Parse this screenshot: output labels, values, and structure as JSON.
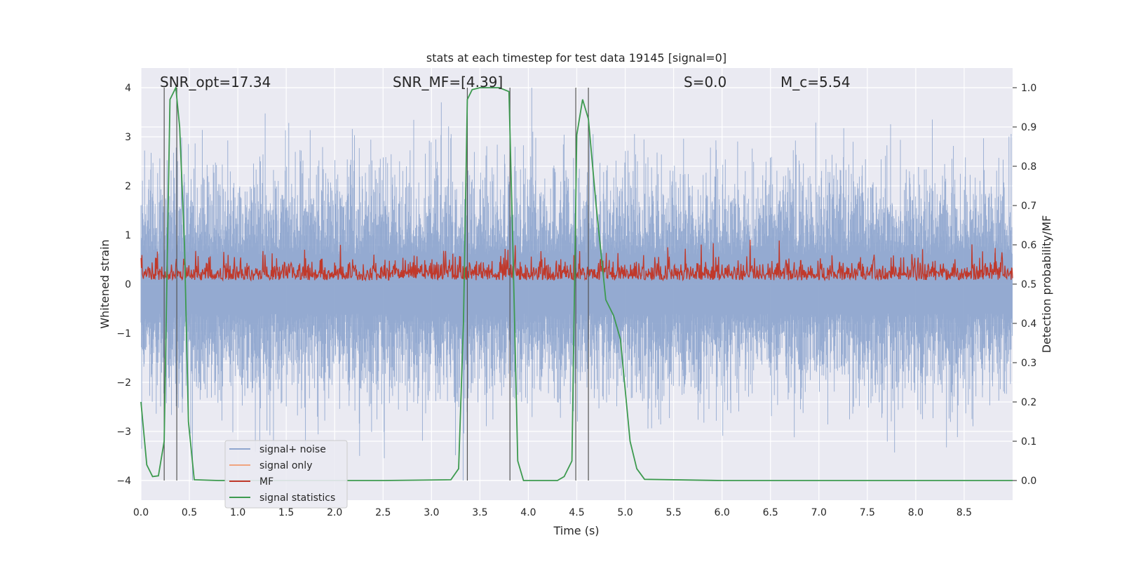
{
  "chart_data": {
    "type": "line",
    "title": "stats at each timestep for test data 19145 [signal=0]",
    "xlabel": "Time (s)",
    "ylabel_left": "Whitened strain",
    "ylabel_right": "Detection probability/MF",
    "xlim": [
      0,
      9.0
    ],
    "ylim_left": [
      -4.4,
      4.4
    ],
    "ylim_right": [
      -0.05,
      1.05
    ],
    "x_ticks": [
      0.0,
      0.5,
      1.0,
      1.5,
      2.0,
      2.5,
      3.0,
      3.5,
      4.0,
      4.5,
      5.0,
      5.5,
      6.0,
      6.5,
      7.0,
      7.5,
      8.0,
      8.5
    ],
    "x_tick_labels": [
      "0.0",
      "0.5",
      "1.0",
      "1.5",
      "2.0",
      "2.5",
      "3.0",
      "3.5",
      "4.0",
      "4.5",
      "5.0",
      "5.5",
      "6.0",
      "6.5",
      "7.0",
      "7.5",
      "8.0",
      "8.5"
    ],
    "y_ticks_left": [
      -4,
      -3,
      -2,
      -1,
      0,
      1,
      2,
      3,
      4
    ],
    "y_tick_labels_left": [
      "−4",
      "−3",
      "−2",
      "−1",
      "0",
      "1",
      "2",
      "3",
      "4"
    ],
    "y_ticks_right": [
      0.0,
      0.1,
      0.2,
      0.3,
      0.4,
      0.5,
      0.6,
      0.7,
      0.8,
      0.9,
      1.0
    ],
    "y_tick_labels_right": [
      "0.0",
      "0.1",
      "0.2",
      "0.3",
      "0.4",
      "0.5",
      "0.6",
      "0.7",
      "0.8",
      "0.9",
      "1.0"
    ],
    "grid": true,
    "annotations": [
      {
        "text": "SNR_opt=17.34",
        "x": 0.2,
        "y": 4.1
      },
      {
        "text": "SNR_MF=[4.39]",
        "x": 2.6,
        "y": 4.1
      },
      {
        "text": "S=0.0",
        "x": 5.6,
        "y": 4.1
      },
      {
        "text": "M_c=5.54",
        "x": 6.6,
        "y": 4.1
      }
    ],
    "vertical_lines_x": [
      0.24,
      0.37,
      3.37,
      3.81,
      4.49,
      4.62
    ],
    "series": [
      {
        "name": "signal+ noise",
        "color": "#8fa6cf",
        "axis": "left",
        "description": "whitened strain noise, approx within ±2.5 with peaks to ±4"
      },
      {
        "name": "signal only",
        "color": "#f0a47f",
        "axis": "left",
        "values": []
      },
      {
        "name": "MF",
        "color": "#c0392b",
        "axis": "right",
        "description": "matched-filter output ~0.50–0.62"
      },
      {
        "name": "signal statistics",
        "color": "#3d9a4f",
        "axis": "right",
        "x": [
          0.0,
          0.06,
          0.12,
          0.18,
          0.24,
          0.3,
          0.36,
          0.4,
          0.45,
          0.49,
          0.55,
          0.8,
          1.5,
          2.5,
          3.2,
          3.28,
          3.33,
          3.37,
          3.42,
          3.5,
          3.6,
          3.7,
          3.8,
          3.84,
          3.89,
          3.95,
          4.1,
          4.3,
          4.37,
          4.45,
          4.5,
          4.56,
          4.62,
          4.7,
          4.8,
          4.88,
          4.95,
          5.05,
          5.12,
          5.2,
          6.0,
          7.0,
          8.0,
          9.0
        ],
        "values": [
          0.2,
          0.04,
          0.01,
          0.012,
          0.1,
          0.97,
          1.0,
          0.9,
          0.6,
          0.15,
          0.002,
          0.0,
          0.0,
          0.0,
          0.002,
          0.03,
          0.4,
          0.97,
          0.995,
          1.0,
          1.0,
          1.0,
          0.99,
          0.6,
          0.05,
          0.0,
          0.0,
          0.0,
          0.01,
          0.05,
          0.88,
          0.97,
          0.92,
          0.7,
          0.46,
          0.42,
          0.36,
          0.1,
          0.03,
          0.003,
          0.0,
          0.0,
          0.0,
          0.0
        ]
      }
    ],
    "legend": {
      "position": "lower-left"
    }
  }
}
